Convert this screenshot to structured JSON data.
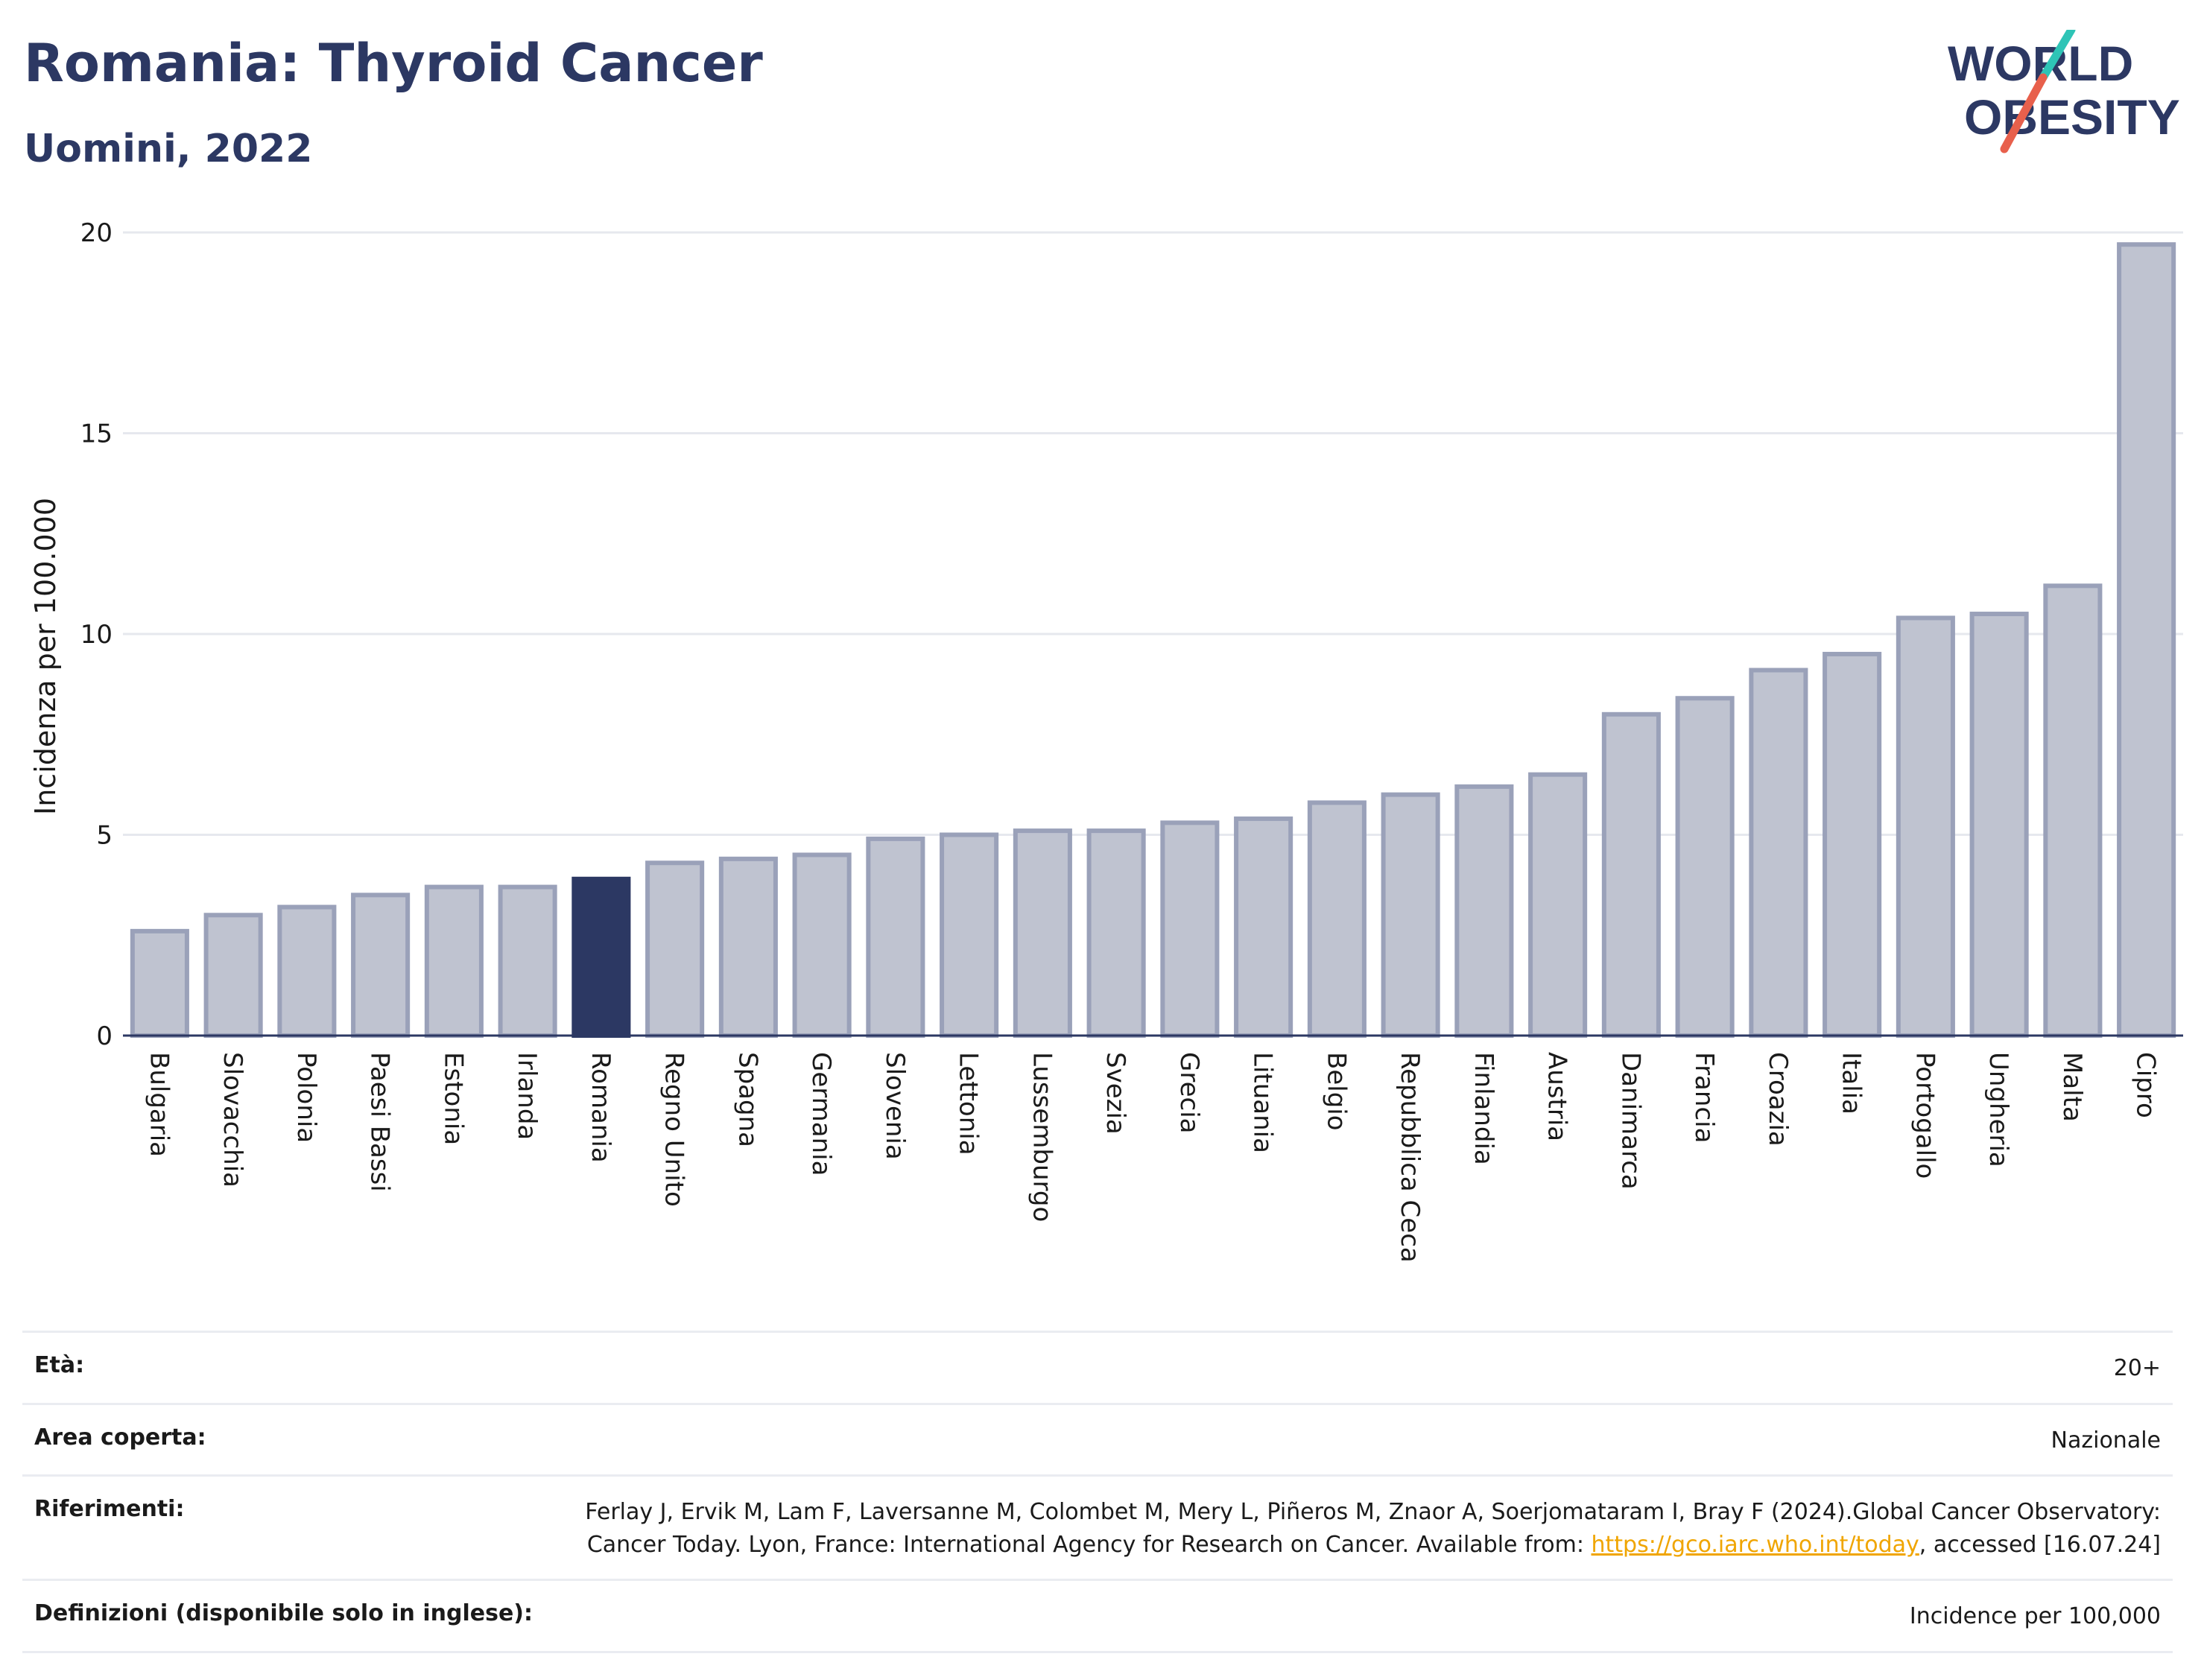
{
  "header": {
    "title": "Romania: Thyroid Cancer",
    "subtitle": "Uomini, 2022"
  },
  "logo": {
    "line1": "WORLD",
    "line2": "OBESITY",
    "colors": {
      "text": "#2c3863",
      "slash_teal": "#2ec4b6",
      "slash_red": "#e8604c"
    }
  },
  "chart_data": {
    "type": "bar",
    "title": "Romania: Thyroid Cancer",
    "subtitle": "Uomini, 2022",
    "ylabel": "Incidenza per 100.000",
    "xlabel": "",
    "ylim": [
      0,
      20
    ],
    "yticks": [
      0,
      5,
      10,
      15,
      20
    ],
    "grid": true,
    "legend": "none",
    "highlight": "Romania",
    "colors": {
      "bar": "#bfc3d0",
      "bar_border": "#9aa1b9",
      "highlight": "#2c3863",
      "grid": "#e6e8ee"
    },
    "categories": [
      "Bulgaria",
      "Slovacchia",
      "Polonia",
      "Paesi Bassi",
      "Estonia",
      "Irlanda",
      "Romania",
      "Regno Unito",
      "Spagna",
      "Germania",
      "Slovenia",
      "Lettonia",
      "Lussemburgo",
      "Svezia",
      "Grecia",
      "Lituania",
      "Belgio",
      "Repubblica Ceca",
      "Finlandia",
      "Austria",
      "Danimarca",
      "Francia",
      "Croazia",
      "Italia",
      "Portogallo",
      "Ungheria",
      "Malta",
      "Cipro"
    ],
    "values": [
      2.6,
      3.0,
      3.2,
      3.5,
      3.7,
      3.7,
      3.9,
      4.3,
      4.4,
      4.5,
      4.9,
      5.0,
      5.1,
      5.1,
      5.3,
      5.4,
      5.8,
      6.0,
      6.2,
      6.5,
      8.0,
      8.4,
      9.1,
      9.5,
      10.4,
      10.5,
      11.2,
      19.7
    ]
  },
  "info": {
    "age_label": "Età:",
    "age_value": "20+",
    "area_label": "Area coperta:",
    "area_value": "Nazionale",
    "ref_label": "Riferimenti:",
    "ref_text_1": "Ferlay J, Ervik M, Lam F, Laversanne M, Colombet M, Mery L, Piñeros M, Znaor A, Soerjomataram I, Bray F (2024).Global Cancer Observatory: Cancer Today. Lyon, France: International Agency for Research on Cancer. Available from: ",
    "ref_link": "https://gco.iarc.who.int/today",
    "ref_text_2": ", accessed [16.07.24]",
    "def_label": "Definizioni (disponibile solo in inglese):",
    "def_value": "Incidence per 100,000"
  }
}
